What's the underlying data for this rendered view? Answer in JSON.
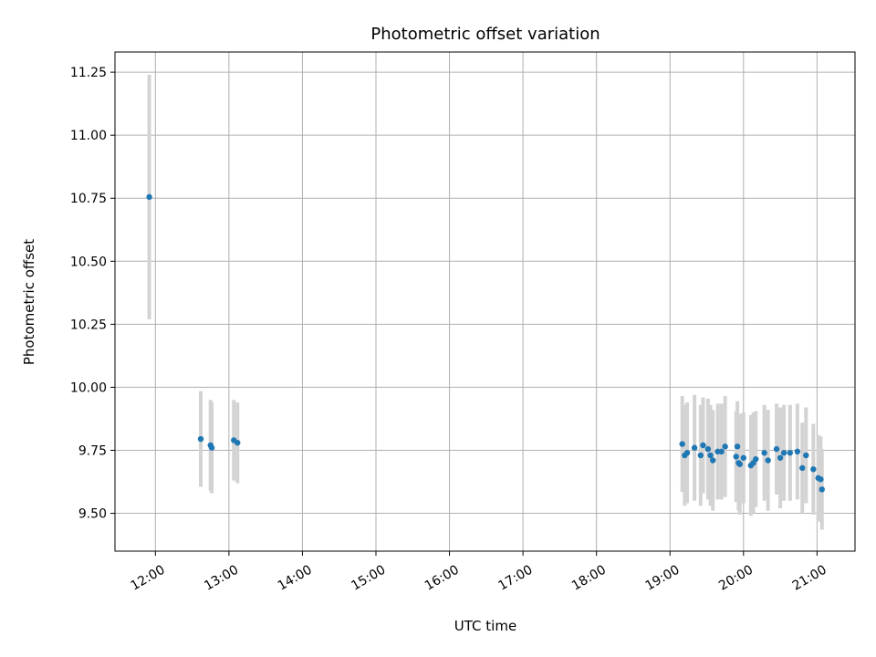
{
  "chart_data": {
    "type": "scatter",
    "title": "Photometric offset variation",
    "xlabel": "UTC time",
    "ylabel": "Photometric offset",
    "x_unit": "UTC time (HH:MM)",
    "xlim": [
      "11:27",
      "21:31"
    ],
    "ylim": [
      9.35,
      11.33
    ],
    "x_ticks": [
      "12:00",
      "13:00",
      "14:00",
      "15:00",
      "16:00",
      "17:00",
      "18:00",
      "19:00",
      "20:00",
      "21:00"
    ],
    "y_ticks": [
      "9.50",
      "9.75",
      "10.00",
      "10.25",
      "10.50",
      "10.75",
      "11.00",
      "11.25"
    ],
    "grid": true,
    "marker_color": "#1f77b4",
    "errorbar_color": "#d3d3d3",
    "points": [
      {
        "x": "11:55",
        "y": 10.755,
        "yerr": 0.485
      },
      {
        "x": "12:37",
        "y": 9.795,
        "yerr": 0.19
      },
      {
        "x": "12:45",
        "y": 9.77,
        "yerr": 0.18
      },
      {
        "x": "12:46",
        "y": 9.76,
        "yerr": 0.18
      },
      {
        "x": "13:04",
        "y": 9.79,
        "yerr": 0.16
      },
      {
        "x": "13:07",
        "y": 9.78,
        "yerr": 0.16
      },
      {
        "x": "19:10",
        "y": 9.775,
        "yerr": 0.19
      },
      {
        "x": "19:12",
        "y": 9.73,
        "yerr": 0.2
      },
      {
        "x": "19:14",
        "y": 9.74,
        "yerr": 0.2
      },
      {
        "x": "19:20",
        "y": 9.76,
        "yerr": 0.21
      },
      {
        "x": "19:25",
        "y": 9.73,
        "yerr": 0.2
      },
      {
        "x": "19:27",
        "y": 9.77,
        "yerr": 0.19
      },
      {
        "x": "19:31",
        "y": 9.755,
        "yerr": 0.2
      },
      {
        "x": "19:33",
        "y": 9.73,
        "yerr": 0.2
      },
      {
        "x": "19:35",
        "y": 9.71,
        "yerr": 0.2
      },
      {
        "x": "19:39",
        "y": 9.745,
        "yerr": 0.19
      },
      {
        "x": "19:42",
        "y": 9.745,
        "yerr": 0.19
      },
      {
        "x": "19:45",
        "y": 9.765,
        "yerr": 0.2
      },
      {
        "x": "19:54",
        "y": 9.725,
        "yerr": 0.18
      },
      {
        "x": "19:55",
        "y": 9.765,
        "yerr": 0.18
      },
      {
        "x": "19:56",
        "y": 9.7,
        "yerr": 0.19
      },
      {
        "x": "19:57",
        "y": 9.695,
        "yerr": 0.2
      },
      {
        "x": "20:00",
        "y": 9.72,
        "yerr": 0.18
      },
      {
        "x": "20:06",
        "y": 9.69,
        "yerr": 0.2
      },
      {
        "x": "20:08",
        "y": 9.7,
        "yerr": 0.2
      },
      {
        "x": "20:10",
        "y": 9.715,
        "yerr": 0.19
      },
      {
        "x": "20:17",
        "y": 9.74,
        "yerr": 0.19
      },
      {
        "x": "20:20",
        "y": 9.71,
        "yerr": 0.2
      },
      {
        "x": "20:27",
        "y": 9.755,
        "yerr": 0.18
      },
      {
        "x": "20:30",
        "y": 9.72,
        "yerr": 0.2
      },
      {
        "x": "20:33",
        "y": 9.74,
        "yerr": 0.19
      },
      {
        "x": "20:38",
        "y": 9.74,
        "yerr": 0.19
      },
      {
        "x": "20:44",
        "y": 9.745,
        "yerr": 0.19
      },
      {
        "x": "20:48",
        "y": 9.68,
        "yerr": 0.18
      },
      {
        "x": "20:51",
        "y": 9.73,
        "yerr": 0.19
      },
      {
        "x": "20:57",
        "y": 9.675,
        "yerr": 0.18
      },
      {
        "x": "21:01",
        "y": 9.64,
        "yerr": 0.17
      },
      {
        "x": "21:03",
        "y": 9.635,
        "yerr": 0.17
      },
      {
        "x": "21:04",
        "y": 9.595,
        "yerr": 0.16
      }
    ]
  }
}
